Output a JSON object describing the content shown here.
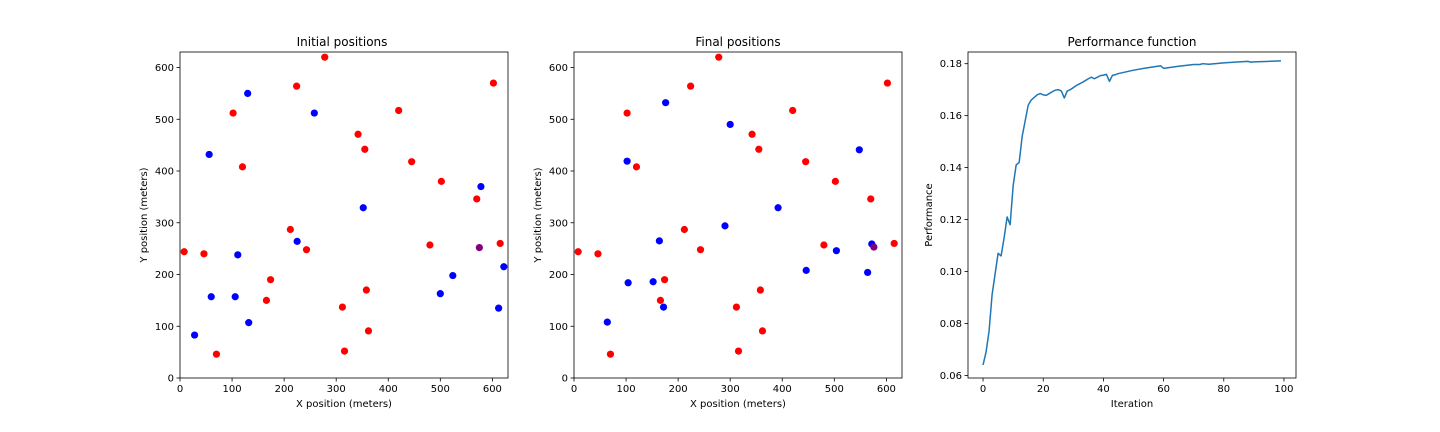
{
  "chart_data": [
    {
      "type": "scatter",
      "title": "Initial positions",
      "xlabel": "X position (meters)",
      "ylabel": "Y position (meters)",
      "xlim": [
        0,
        630
      ],
      "ylim": [
        0,
        630
      ],
      "xticks": [
        0,
        100,
        200,
        300,
        400,
        500,
        600
      ],
      "yticks": [
        0,
        100,
        200,
        300,
        400,
        500,
        600
      ],
      "grid": false,
      "series": [
        {
          "color": "#ff0000",
          "points": [
            [
              278,
              620
            ],
            [
              224,
              564
            ],
            [
              602,
              570
            ],
            [
              102,
              512
            ],
            [
              420,
              517
            ],
            [
              342,
              471
            ],
            [
              355,
              442
            ],
            [
              120,
              408
            ],
            [
              445,
              418
            ],
            [
              502,
              380
            ],
            [
              570,
              346
            ],
            [
              212,
              287
            ],
            [
              8,
              244
            ],
            [
              46,
              240
            ],
            [
              243,
              248
            ],
            [
              480,
              257
            ],
            [
              615,
              260
            ],
            [
              174,
              190
            ],
            [
              166,
              150
            ],
            [
              312,
              137
            ],
            [
              358,
              170
            ],
            [
              362,
              91
            ],
            [
              316,
              52
            ],
            [
              70,
              46
            ]
          ]
        },
        {
          "color": "#0000ff",
          "points": [
            [
              130,
              550
            ],
            [
              258,
              512
            ],
            [
              56,
              432
            ],
            [
              578,
              370
            ],
            [
              352,
              329
            ],
            [
              225,
              264
            ],
            [
              111,
              238
            ],
            [
              622,
              215
            ],
            [
              524,
              198
            ],
            [
              60,
              157
            ],
            [
              106,
              157
            ],
            [
              500,
              163
            ],
            [
              612,
              135
            ],
            [
              132,
              107
            ],
            [
              28,
              83
            ]
          ]
        },
        {
          "color": "#800080",
          "points": [
            [
              575,
              252
            ]
          ]
        }
      ]
    },
    {
      "type": "scatter",
      "title": "Final positions",
      "xlabel": "X position (meters)",
      "ylabel": "Y position (meters)",
      "xlim": [
        0,
        630
      ],
      "ylim": [
        0,
        630
      ],
      "xticks": [
        0,
        100,
        200,
        300,
        400,
        500,
        600
      ],
      "yticks": [
        0,
        100,
        200,
        300,
        400,
        500,
        600
      ],
      "grid": false,
      "series": [
        {
          "color": "#ff0000",
          "points": [
            [
              278,
              620
            ],
            [
              224,
              564
            ],
            [
              602,
              570
            ],
            [
              102,
              512
            ],
            [
              420,
              517
            ],
            [
              342,
              471
            ],
            [
              355,
              442
            ],
            [
              120,
              408
            ],
            [
              445,
              418
            ],
            [
              502,
              380
            ],
            [
              570,
              346
            ],
            [
              212,
              287
            ],
            [
              8,
              244
            ],
            [
              46,
              240
            ],
            [
              243,
              248
            ],
            [
              480,
              257
            ],
            [
              615,
              260
            ],
            [
              174,
              190
            ],
            [
              166,
              150
            ],
            [
              312,
              137
            ],
            [
              358,
              170
            ],
            [
              362,
              91
            ],
            [
              316,
              52
            ],
            [
              70,
              46
            ]
          ]
        },
        {
          "color": "#0000ff",
          "points": [
            [
              176,
              532
            ],
            [
              300,
              490
            ],
            [
              102,
              419
            ],
            [
              548,
              441
            ],
            [
              392,
              329
            ],
            [
              290,
              294
            ],
            [
              164,
              265
            ],
            [
              104,
              184
            ],
            [
              152,
              186
            ],
            [
              172,
              137
            ],
            [
              64,
              108
            ],
            [
              446,
              208
            ],
            [
              504,
              246
            ],
            [
              564,
              204
            ],
            [
              572,
              259
            ]
          ]
        },
        {
          "color": "#800080",
          "points": [
            [
              576,
              253
            ]
          ]
        }
      ]
    },
    {
      "type": "line",
      "title": "Performance function",
      "xlabel": "Iteration",
      "ylabel": "Performance",
      "xlim": [
        -5,
        104
      ],
      "ylim": [
        0.059,
        0.1845
      ],
      "xticks": [
        0,
        20,
        40,
        60,
        80,
        100
      ],
      "yticks": [
        0.06,
        0.08,
        0.1,
        0.12,
        0.14,
        0.16,
        0.18
      ],
      "ytick_labels": [
        "0.06",
        "0.08",
        "0.10",
        "0.12",
        "0.14",
        "0.16",
        "0.18"
      ],
      "grid": false,
      "series": [
        {
          "color": "#1f77b4",
          "x": [
            0,
            1,
            2,
            3,
            4,
            5,
            6,
            7,
            8,
            9,
            10,
            11,
            12,
            13,
            14,
            15,
            16,
            17,
            18,
            19,
            20,
            21,
            22,
            23,
            24,
            25,
            26,
            27,
            28,
            29,
            30,
            31,
            32,
            33,
            34,
            35,
            36,
            37,
            38,
            39,
            40,
            41,
            42,
            43,
            44,
            45,
            50,
            55,
            58,
            59,
            60,
            65,
            70,
            72,
            73,
            75,
            80,
            85,
            88,
            89,
            90,
            95,
            99
          ],
          "y": [
            0.064,
            0.069,
            0.077,
            0.091,
            0.099,
            0.107,
            0.106,
            0.113,
            0.121,
            0.118,
            0.133,
            0.141,
            0.142,
            0.152,
            0.158,
            0.164,
            0.166,
            0.167,
            0.168,
            0.1685,
            0.168,
            0.1678,
            0.1685,
            0.1692,
            0.1698,
            0.17,
            0.1695,
            0.1668,
            0.1695,
            0.17,
            0.1708,
            0.1716,
            0.1722,
            0.1728,
            0.1735,
            0.1742,
            0.1748,
            0.1742,
            0.1748,
            0.1754,
            0.1756,
            0.1759,
            0.1732,
            0.1755,
            0.1758,
            0.1762,
            0.1775,
            0.1785,
            0.179,
            0.1792,
            0.1782,
            0.179,
            0.1797,
            0.1797,
            0.18,
            0.1798,
            0.1803,
            0.1807,
            0.1809,
            0.1806,
            0.1807,
            0.1809,
            0.1811
          ]
        }
      ]
    }
  ]
}
